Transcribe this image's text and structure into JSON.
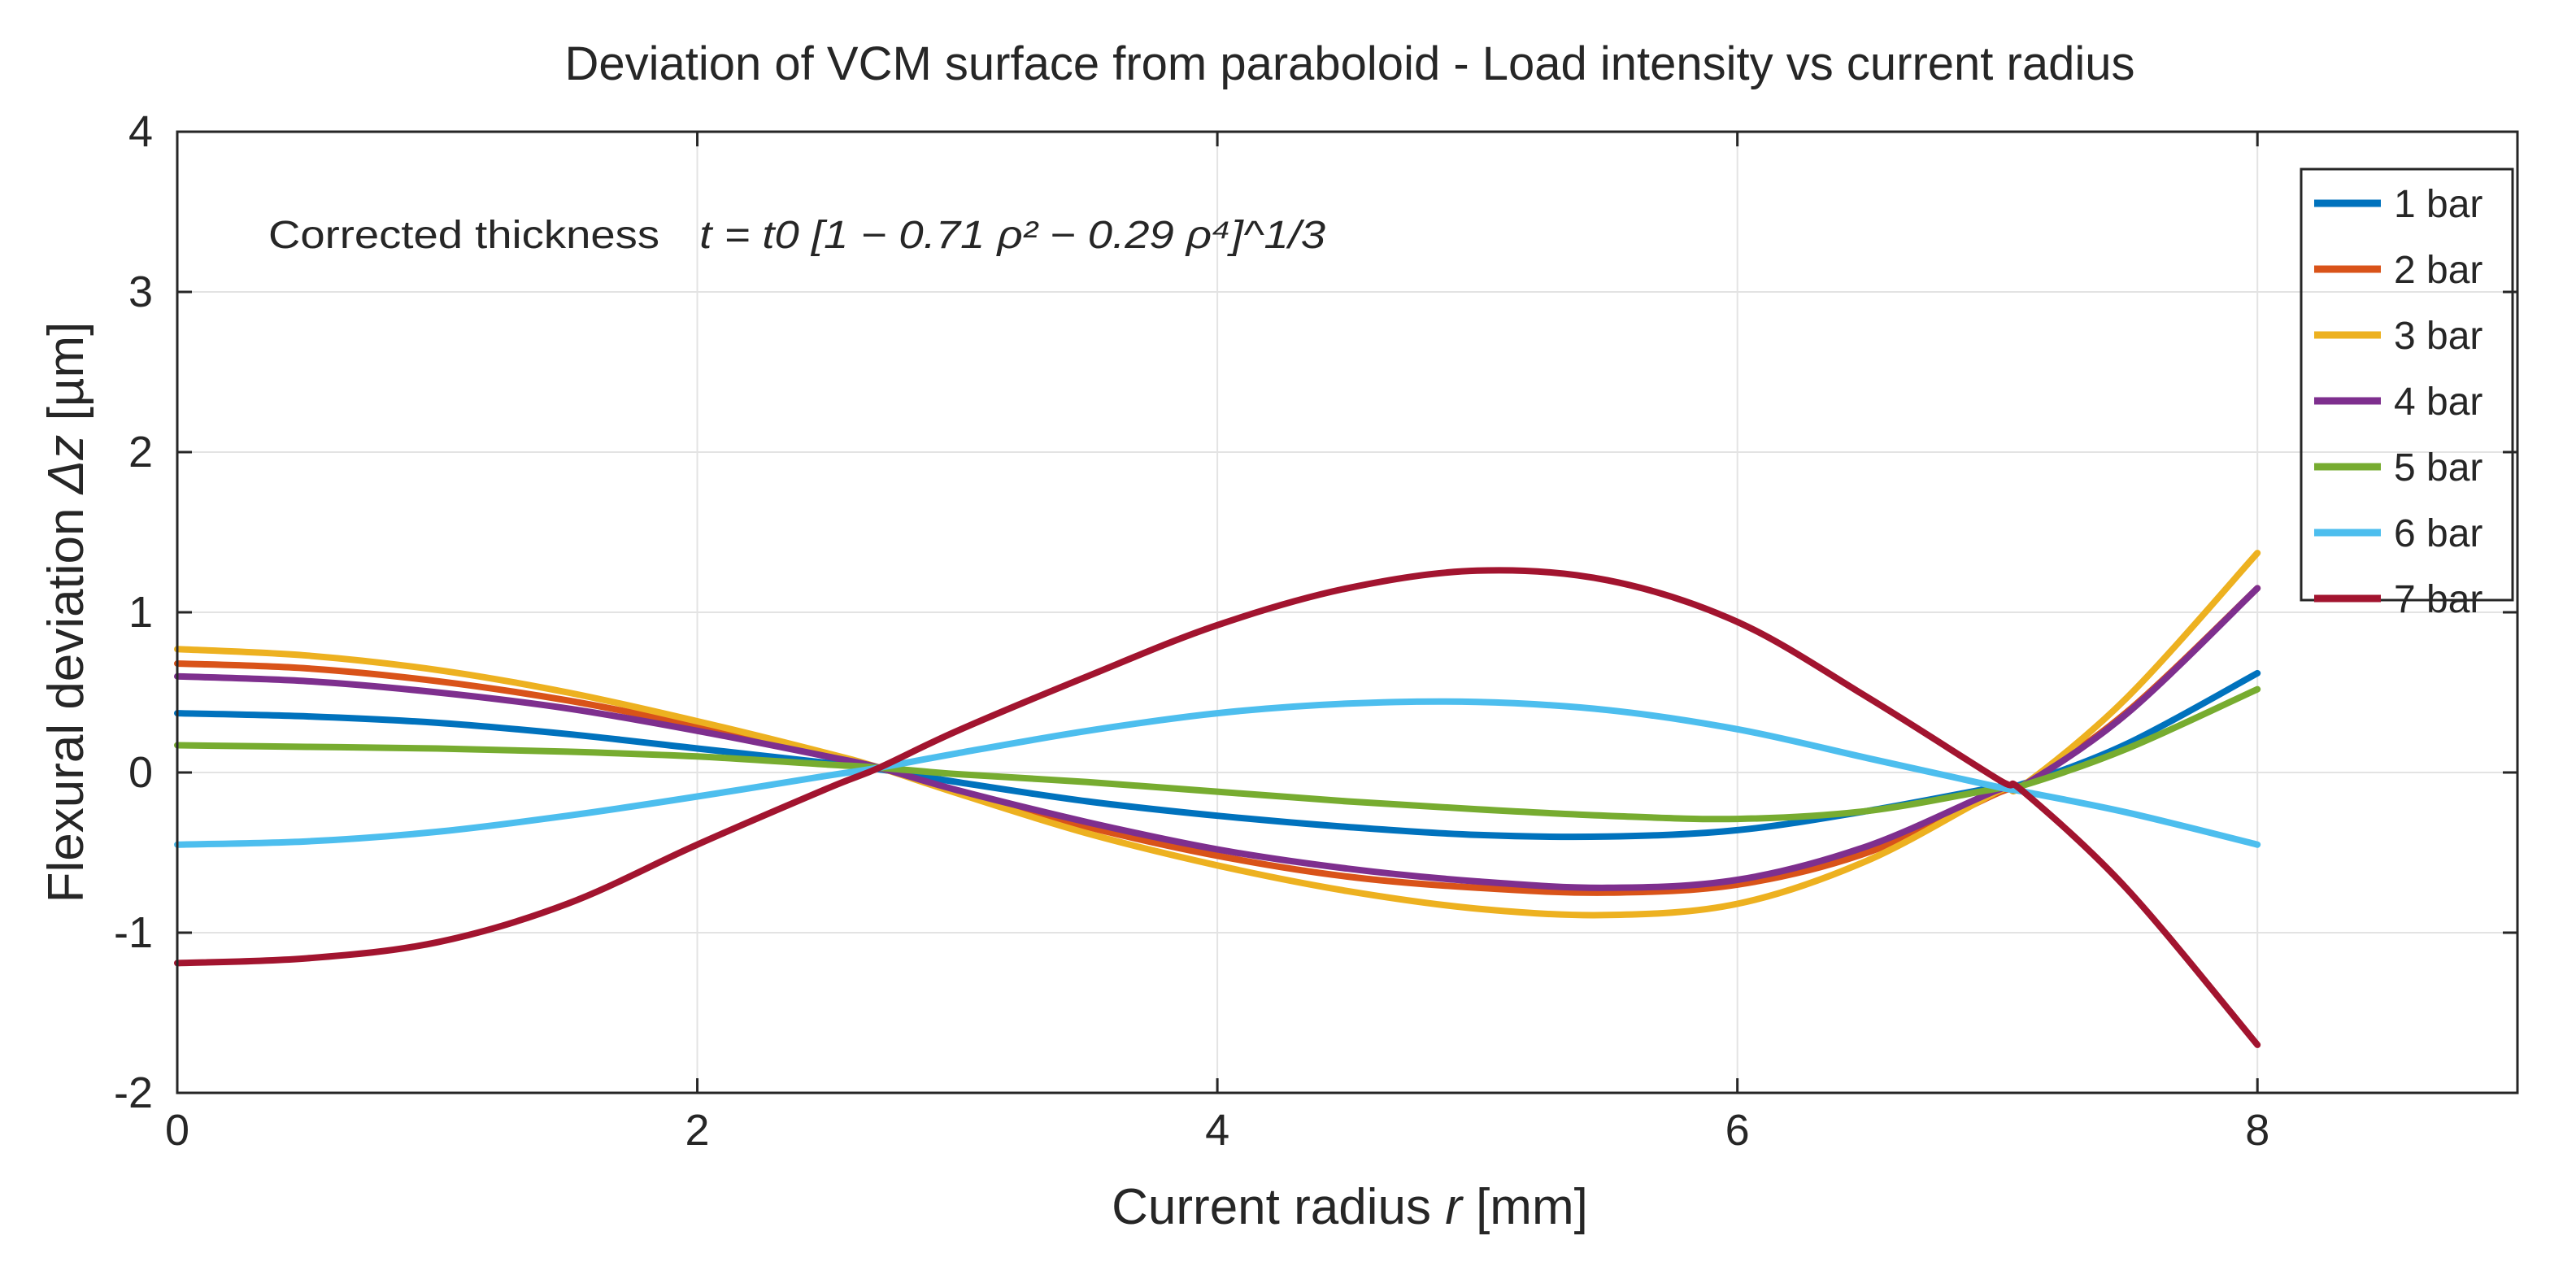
{
  "chart_data": {
    "type": "line",
    "title": "Deviation of VCM surface from paraboloid  -  Load intensity vs current radius",
    "xlabel_text": "Current radius ",
    "xlabel_var": "r",
    "xlabel_unit": " [mm]",
    "ylabel_text": "Flexural deviation  ",
    "ylabel_var": "Δz",
    "ylabel_unit": " [µm]",
    "xlim": [
      0,
      9
    ],
    "ylim": [
      -2,
      4
    ],
    "xticks": [
      0,
      2,
      4,
      6,
      8
    ],
    "yticks": [
      -2,
      -1,
      0,
      1,
      2,
      3,
      4
    ],
    "grid": true,
    "legend_position": "top-right",
    "annotation": {
      "prefix": "Corrected thickness",
      "formula": "t = t0 [1 − 0.71 ρ² − 0.29 ρ⁴]^1/3"
    },
    "series": [
      {
        "name": "1 bar",
        "color": "#0072BD",
        "x": [
          0,
          0.5,
          1,
          1.5,
          2,
          2.5,
          2.7,
          3,
          3.5,
          4,
          4.5,
          5,
          5.5,
          6,
          6.5,
          7,
          7.1,
          7.5,
          8
        ],
        "y": [
          0.37,
          0.35,
          0.31,
          0.24,
          0.15,
          0.06,
          0.02,
          -0.06,
          -0.18,
          -0.27,
          -0.34,
          -0.39,
          -0.4,
          -0.36,
          -0.24,
          -0.09,
          -0.07,
          0.18,
          0.62
        ]
      },
      {
        "name": "2 bar",
        "color": "#D95319",
        "x": [
          0,
          0.5,
          1,
          1.5,
          2,
          2.5,
          2.7,
          3,
          3.5,
          4,
          4.5,
          5,
          5.5,
          6,
          6.5,
          7,
          7.1,
          7.5,
          8
        ],
        "y": [
          0.68,
          0.65,
          0.57,
          0.45,
          0.29,
          0.11,
          0.03,
          -0.12,
          -0.34,
          -0.52,
          -0.65,
          -0.72,
          -0.75,
          -0.7,
          -0.5,
          -0.13,
          -0.08,
          0.38,
          1.15
        ]
      },
      {
        "name": "3 bar",
        "color": "#EDB120",
        "x": [
          0,
          0.5,
          1,
          1.5,
          2,
          2.5,
          2.7,
          3,
          3.5,
          4,
          4.5,
          5,
          5.5,
          6,
          6.5,
          7,
          7.1,
          7.5,
          8
        ],
        "y": [
          0.77,
          0.73,
          0.64,
          0.5,
          0.32,
          0.12,
          0.03,
          -0.13,
          -0.38,
          -0.58,
          -0.74,
          -0.85,
          -0.89,
          -0.82,
          -0.55,
          -0.12,
          -0.08,
          0.47,
          1.37
        ]
      },
      {
        "name": "4 bar",
        "color": "#7E2F8E",
        "x": [
          0,
          0.5,
          1,
          1.5,
          2,
          2.5,
          2.7,
          3,
          3.5,
          4,
          4.5,
          5,
          5.5,
          6,
          6.5,
          7,
          7.1,
          7.5,
          8
        ],
        "y": [
          0.6,
          0.57,
          0.5,
          0.4,
          0.26,
          0.1,
          0.03,
          -0.11,
          -0.31,
          -0.48,
          -0.6,
          -0.68,
          -0.72,
          -0.67,
          -0.46,
          -0.11,
          -0.08,
          0.37,
          1.15
        ]
      },
      {
        "name": "5 bar",
        "color": "#77AC30",
        "x": [
          0,
          0.5,
          1,
          1.5,
          2,
          2.5,
          2.7,
          3,
          3.5,
          4,
          4.5,
          5,
          5.5,
          6,
          6.5,
          7,
          7.1,
          7.5,
          8
        ],
        "y": [
          0.17,
          0.16,
          0.15,
          0.13,
          0.1,
          0.05,
          0.03,
          -0.01,
          -0.06,
          -0.12,
          -0.18,
          -0.23,
          -0.27,
          -0.29,
          -0.24,
          -0.1,
          -0.08,
          0.15,
          0.52
        ]
      },
      {
        "name": "6 bar",
        "color": "#4DBEEE",
        "x": [
          0,
          0.5,
          1,
          1.5,
          2,
          2.5,
          2.7,
          3,
          3.5,
          4,
          4.5,
          5,
          5.5,
          6,
          6.5,
          7,
          7.1,
          7.5,
          8
        ],
        "y": [
          -0.45,
          -0.43,
          -0.37,
          -0.27,
          -0.15,
          -0.02,
          0.03,
          0.12,
          0.26,
          0.37,
          0.43,
          0.44,
          0.39,
          0.27,
          0.09,
          -0.09,
          -0.12,
          -0.25,
          -0.45
        ]
      },
      {
        "name": "7 bar",
        "color": "#A2142F",
        "x": [
          0,
          0.5,
          1,
          1.5,
          2,
          2.5,
          2.7,
          3,
          3.5,
          4,
          4.5,
          5,
          5.5,
          6,
          6.5,
          7,
          7.1,
          7.5,
          8
        ],
        "y": [
          -1.19,
          -1.16,
          -1.06,
          -0.82,
          -0.45,
          -0.1,
          0.03,
          0.26,
          0.6,
          0.92,
          1.15,
          1.26,
          1.2,
          0.94,
          0.47,
          -0.04,
          -0.12,
          -0.73,
          -1.7
        ]
      }
    ]
  }
}
